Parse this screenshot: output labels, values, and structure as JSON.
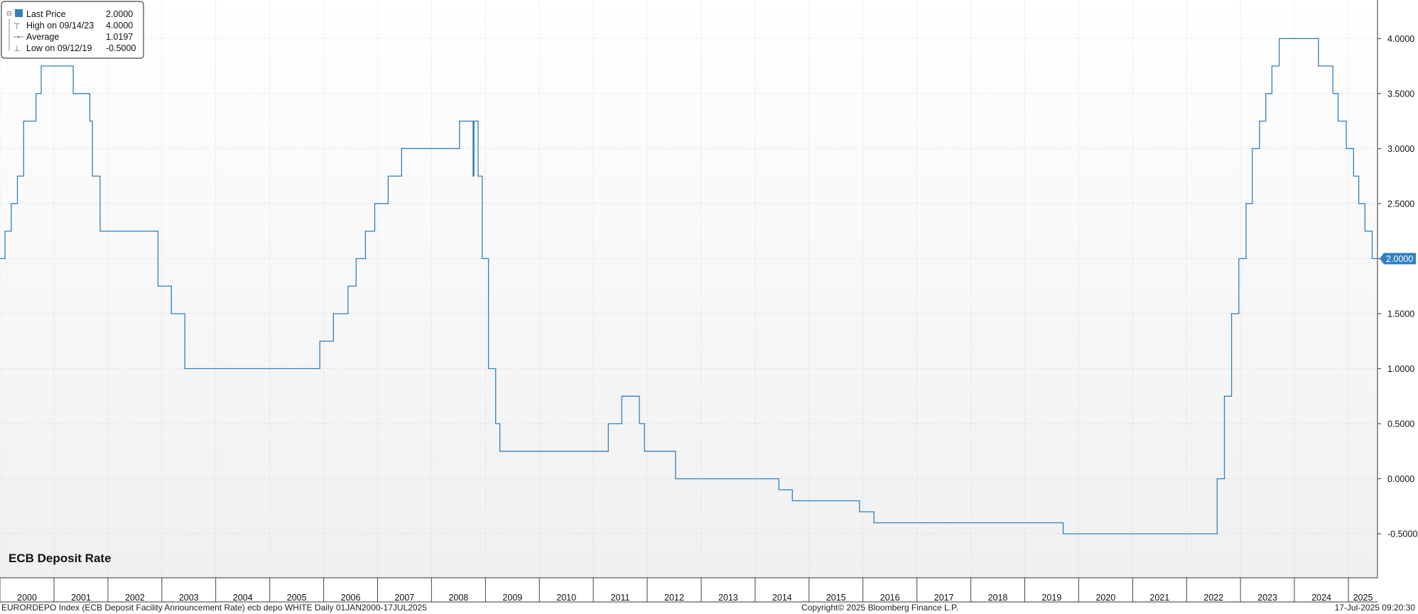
{
  "chart_data": {
    "type": "line",
    "title": "ECB Deposit Rate",
    "interpolation": "step",
    "x_range": [
      "2000-01-01",
      "2025-07-17"
    ],
    "ylim": [
      -0.9,
      4.35
    ],
    "grid": true,
    "yticks": [
      4.0,
      3.5,
      3.0,
      2.5,
      2.0,
      1.5,
      1.0,
      0.5,
      0.0,
      -0.5
    ],
    "ytick_labels": [
      "4.0000",
      "3.5000",
      "3.0000",
      "2.5000",
      "2.0000",
      "1.5000",
      "1.0000",
      "0.5000",
      "0.0000",
      "-0.5000"
    ],
    "xticks": [
      "2000",
      "2001",
      "2002",
      "2003",
      "2004",
      "2005",
      "2006",
      "2007",
      "2008",
      "2009",
      "2010",
      "2011",
      "2012",
      "2013",
      "2014",
      "2015",
      "2016",
      "2017",
      "2018",
      "2019",
      "2020",
      "2021",
      "2022",
      "2023",
      "2024",
      "2025"
    ],
    "last_value_label": "2.0000",
    "legend": {
      "placement": "top-left",
      "entries": [
        {
          "label": "Last Price",
          "value": "2.0000"
        },
        {
          "label": "High on 09/14/23",
          "value": "4.0000"
        },
        {
          "label": "Average",
          "value": "1.0197"
        },
        {
          "label": "Low on 09/12/19",
          "value": "-0.5000"
        }
      ]
    },
    "series": [
      {
        "color": "#2f7fc1",
        "x": [
          "2000-01-01",
          "2000-02-04",
          "2000-03-17",
          "2000-04-28",
          "2000-06-09",
          "2000-09-01",
          "2000-10-06",
          "2001-05-11",
          "2001-08-31",
          "2001-09-18",
          "2001-11-09",
          "2002-12-06",
          "2003-03-07",
          "2003-06-06",
          "2005-12-06",
          "2006-03-08",
          "2006-06-15",
          "2006-08-09",
          "2006-10-11",
          "2006-12-13",
          "2007-03-14",
          "2007-06-13",
          "2008-07-09",
          "2008-10-09",
          "2008-10-15",
          "2008-11-12",
          "2008-12-10",
          "2009-01-21",
          "2009-03-11",
          "2009-04-08",
          "2011-04-13",
          "2011-07-13",
          "2011-11-09",
          "2011-12-14",
          "2012-07-11",
          "2014-06-11",
          "2014-09-10",
          "2015-12-09",
          "2016-03-16",
          "2019-09-18",
          "2022-07-27",
          "2022-09-14",
          "2022-11-02",
          "2022-12-21",
          "2023-02-08",
          "2023-03-22",
          "2023-05-10",
          "2023-06-21",
          "2023-08-02",
          "2023-09-20",
          "2024-06-12",
          "2024-09-18",
          "2024-10-23",
          "2024-12-18",
          "2025-02-05",
          "2025-03-12",
          "2025-04-23",
          "2025-06-11",
          "2025-07-17"
        ],
        "values": [
          2.0,
          2.25,
          2.5,
          2.75,
          3.25,
          3.5,
          3.75,
          3.5,
          3.25,
          2.75,
          2.25,
          1.75,
          1.5,
          1.0,
          1.25,
          1.5,
          1.75,
          2.0,
          2.25,
          2.5,
          2.75,
          3.0,
          3.25,
          2.75,
          3.25,
          2.75,
          2.0,
          1.0,
          0.5,
          0.25,
          0.5,
          0.75,
          0.5,
          0.25,
          0.0,
          -0.1,
          -0.2,
          -0.3,
          -0.4,
          -0.5,
          0.0,
          0.75,
          1.5,
          2.0,
          2.5,
          3.0,
          3.25,
          3.5,
          3.75,
          4.0,
          3.75,
          3.5,
          3.25,
          3.0,
          2.75,
          2.5,
          2.25,
          2.0,
          2.0
        ]
      }
    ]
  },
  "footer": {
    "left": "EURORDEPO Index (ECB Deposit Facility Announcement Rate) ecb depo WHITE  Daily 01JAN2000-17JUL2025",
    "center": "Copyright© 2025 Bloomberg Finance L.P.",
    "right": "17-Jul-2025 09:20:30"
  }
}
